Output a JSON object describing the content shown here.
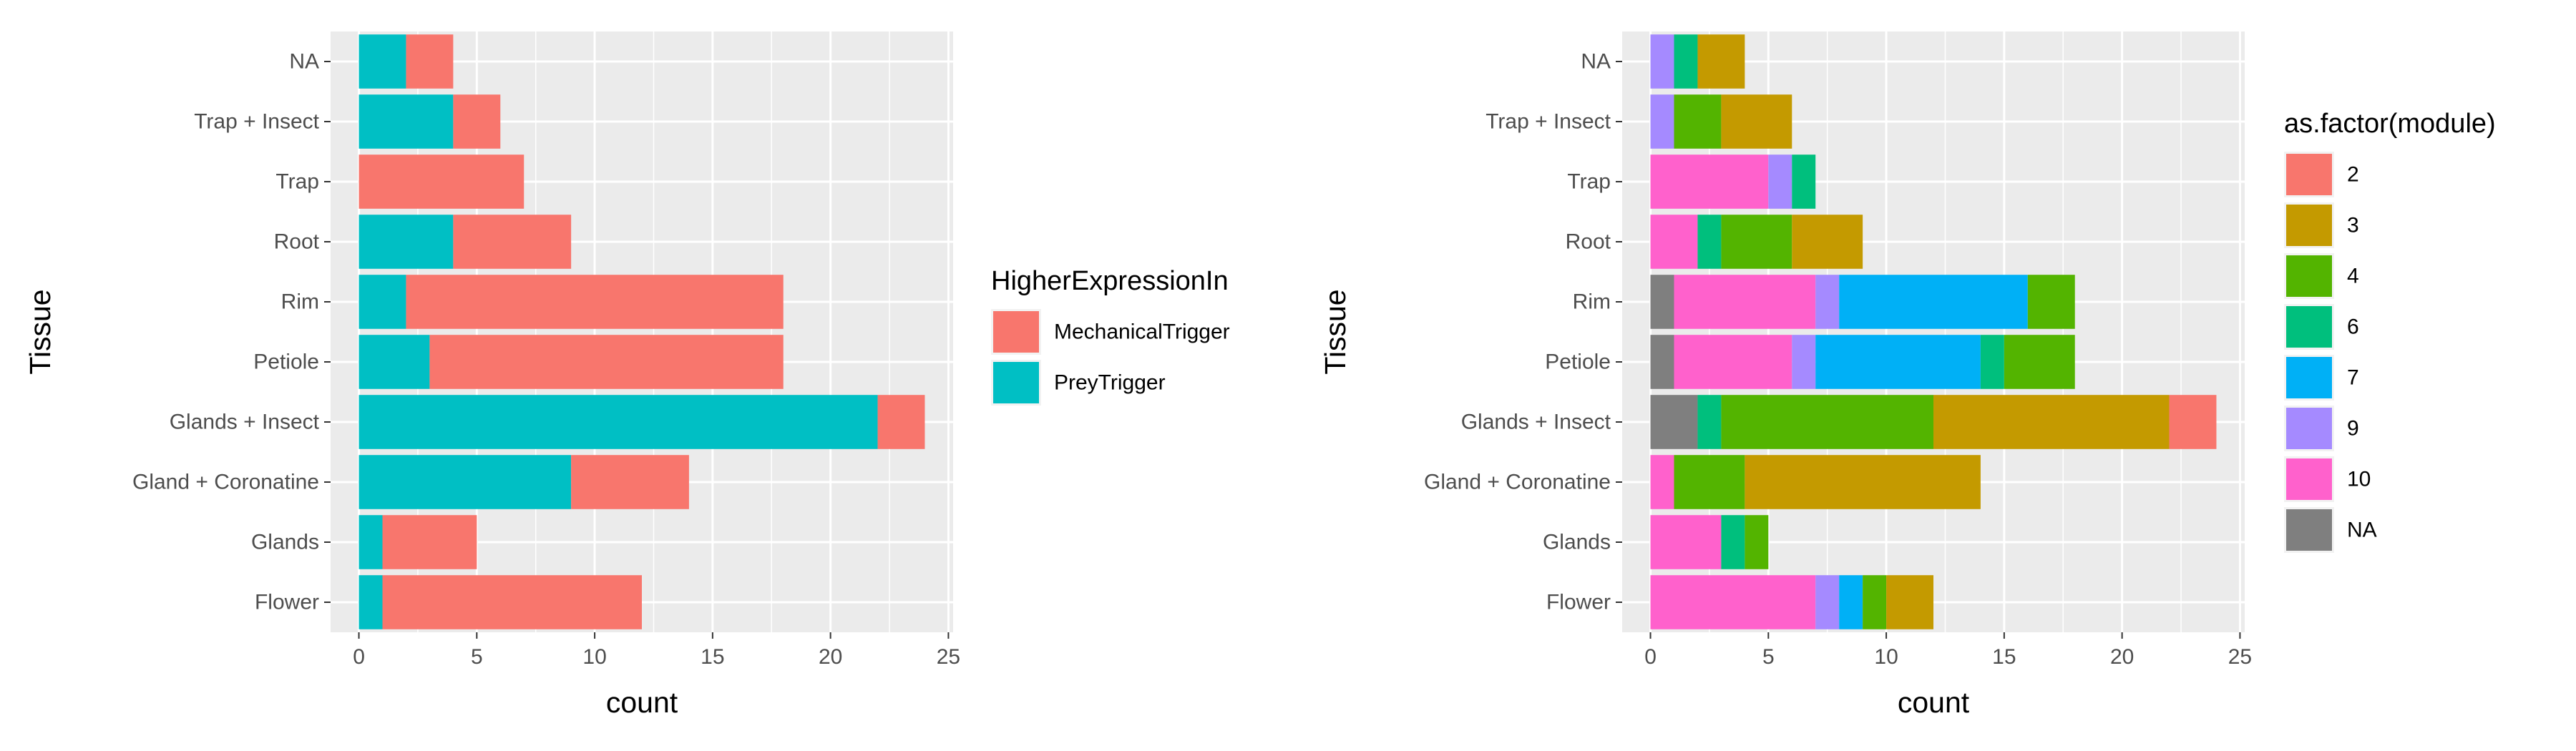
{
  "chart_data": [
    {
      "type": "bar",
      "orientation": "horizontal",
      "stacked": true,
      "xlabel": "count",
      "ylabel": "Tissue",
      "xlim": [
        -1.2,
        25.2
      ],
      "xticks": [
        0,
        5,
        10,
        15,
        20,
        25
      ],
      "categories": [
        "Flower",
        "Glands",
        "Gland + Coronatine",
        "Glands + Insect",
        "Petiole",
        "Rim",
        "Root",
        "Trap",
        "Trap + Insect",
        "NA"
      ],
      "legend": {
        "title": "HigherExpressionIn",
        "position": "right"
      },
      "grid": true,
      "series": [
        {
          "name": "PreyTrigger",
          "color": "#00BFC4",
          "values": [
            1,
            1,
            9,
            22,
            3,
            2,
            4,
            0,
            4,
            2
          ]
        },
        {
          "name": "MechanicalTrigger",
          "color": "#F8766D",
          "values": [
            11,
            4,
            5,
            2,
            15,
            16,
            5,
            7,
            2,
            2
          ]
        }
      ],
      "legend_order": [
        "MechanicalTrigger",
        "PreyTrigger"
      ]
    },
    {
      "type": "bar",
      "orientation": "horizontal",
      "stacked": true,
      "xlabel": "count",
      "ylabel": "Tissue",
      "xlim": [
        -1.2,
        25.2
      ],
      "xticks": [
        0,
        5,
        10,
        15,
        20,
        25
      ],
      "categories": [
        "Flower",
        "Glands",
        "Gland + Coronatine",
        "Glands + Insect",
        "Petiole",
        "Rim",
        "Root",
        "Trap",
        "Trap + Insect",
        "NA"
      ],
      "legend": {
        "title": "as.factor(module)",
        "position": "right"
      },
      "grid": true,
      "series": [
        {
          "name": "NA",
          "color": "#7F7F7F",
          "values": [
            0,
            0,
            0,
            2,
            1,
            1,
            0,
            0,
            0,
            0
          ]
        },
        {
          "name": "10",
          "color": "#FF61CC",
          "values": [
            7,
            3,
            1,
            0,
            5,
            6,
            2,
            5,
            0,
            0
          ]
        },
        {
          "name": "9",
          "color": "#A58AFF",
          "values": [
            1,
            0,
            0,
            0,
            1,
            1,
            0,
            1,
            1,
            1
          ]
        },
        {
          "name": "7",
          "color": "#00B0F6",
          "values": [
            1,
            0,
            0,
            0,
            7,
            8,
            0,
            0,
            0,
            0
          ]
        },
        {
          "name": "6",
          "color": "#00BF7D",
          "values": [
            0,
            1,
            0,
            1,
            1,
            0,
            1,
            1,
            0,
            1
          ]
        },
        {
          "name": "4",
          "color": "#53B400",
          "values": [
            1,
            1,
            3,
            9,
            3,
            2,
            3,
            0,
            2,
            0
          ]
        },
        {
          "name": "3",
          "color": "#C49A00",
          "values": [
            2,
            0,
            10,
            10,
            0,
            0,
            3,
            0,
            3,
            2
          ]
        },
        {
          "name": "2",
          "color": "#F8766D",
          "values": [
            0,
            0,
            0,
            2,
            0,
            0,
            0,
            0,
            0,
            0
          ]
        }
      ],
      "legend_order": [
        "2",
        "3",
        "4",
        "6",
        "7",
        "9",
        "10",
        "NA"
      ]
    }
  ]
}
